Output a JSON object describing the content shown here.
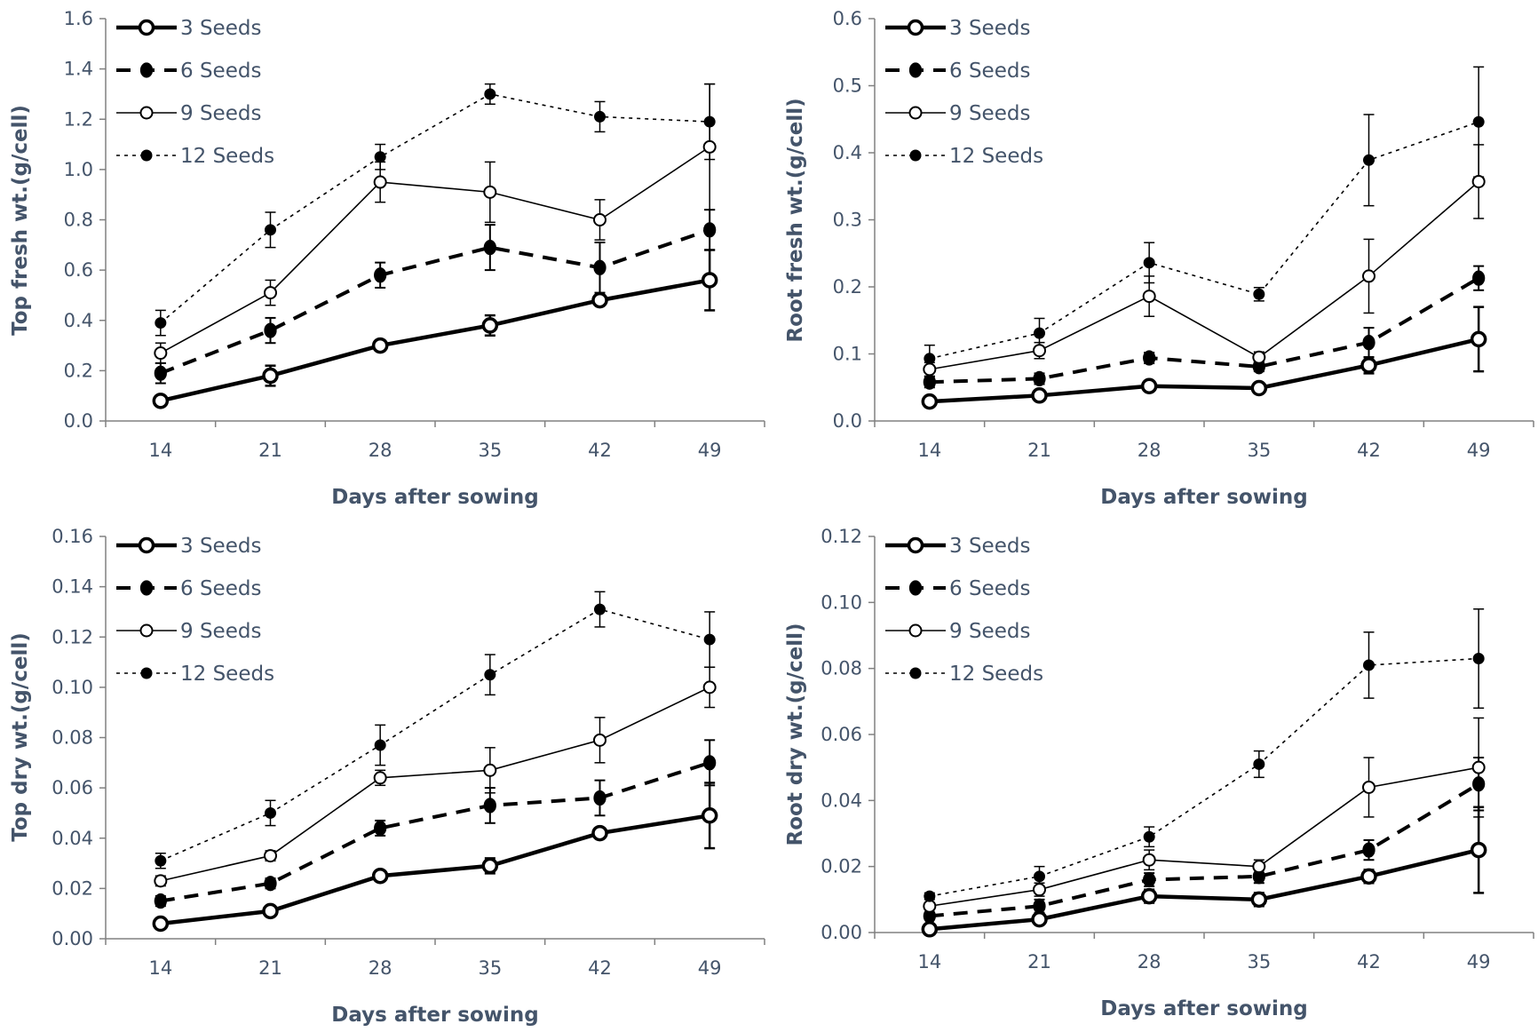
{
  "chart_data": [
    {
      "type": "line",
      "id": "top-fresh",
      "ylabel": "Top fresh wt.(g/cell)",
      "xlabel": "Days after sowing",
      "categories": [
        "14",
        "21",
        "28",
        "35",
        "42",
        "49"
      ],
      "ylim": [
        0,
        1.6
      ],
      "yticks": [
        "0.0",
        "0.2",
        "0.4",
        "0.6",
        "0.8",
        "1.0",
        "1.2",
        "1.4",
        "1.6"
      ],
      "legend_position": "top-left",
      "series": [
        {
          "name": "3 Seeds",
          "values": [
            0.08,
            0.18,
            0.3,
            0.38,
            0.48,
            0.56
          ],
          "errors": [
            0.02,
            0.04,
            0.02,
            0.04,
            0.02,
            0.12
          ]
        },
        {
          "name": "6 Seeds",
          "values": [
            0.19,
            0.36,
            0.58,
            0.69,
            0.61,
            0.76
          ],
          "errors": [
            0.04,
            0.05,
            0.05,
            0.09,
            0.1,
            0.08
          ]
        },
        {
          "name": "9 Seeds",
          "values": [
            0.27,
            0.51,
            0.95,
            0.91,
            0.8,
            1.09
          ],
          "errors": [
            0.04,
            0.05,
            0.08,
            0.12,
            0.08,
            0.25
          ]
        },
        {
          "name": "12 Seeds",
          "values": [
            0.39,
            0.76,
            1.05,
            1.3,
            1.21,
            1.19
          ],
          "errors": [
            0.05,
            0.07,
            0.05,
            0.04,
            0.06,
            0.15
          ]
        }
      ]
    },
    {
      "type": "line",
      "id": "root-fresh",
      "ylabel": "Root fresh wt.(g/cell)",
      "xlabel": "Days after sowing",
      "categories": [
        "14",
        "21",
        "28",
        "35",
        "42",
        "49"
      ],
      "ylim": [
        0,
        0.6
      ],
      "yticks": [
        "0.0",
        "0.1",
        "0.2",
        "0.3",
        "0.4",
        "0.5",
        "0.6"
      ],
      "legend_position": "top-left",
      "series": [
        {
          "name": "3 Seeds",
          "values": [
            0.029,
            0.038,
            0.052,
            0.049,
            0.083,
            0.122
          ],
          "errors": [
            0.005,
            0.005,
            0.006,
            0.004,
            0.012,
            0.048
          ]
        },
        {
          "name": "6 Seeds",
          "values": [
            0.058,
            0.063,
            0.094,
            0.081,
            0.117,
            0.213
          ],
          "errors": [
            0.008,
            0.008,
            0.008,
            0.007,
            0.022,
            0.018
          ]
        },
        {
          "name": "9 Seeds",
          "values": [
            0.077,
            0.105,
            0.186,
            0.095,
            0.216,
            0.357
          ],
          "errors": [
            0.01,
            0.012,
            0.03,
            0.008,
            0.055,
            0.055
          ]
        },
        {
          "name": "12 Seeds",
          "values": [
            0.093,
            0.131,
            0.236,
            0.189,
            0.389,
            0.446
          ],
          "errors": [
            0.02,
            0.022,
            0.03,
            0.01,
            0.068,
            0.082
          ]
        }
      ]
    },
    {
      "type": "line",
      "id": "top-dry",
      "ylabel": "Top dry wt.(g/cell)",
      "xlabel": "Days after sowing",
      "categories": [
        "14",
        "21",
        "28",
        "35",
        "42",
        "49"
      ],
      "ylim": [
        0,
        0.16
      ],
      "yticks": [
        "0.00",
        "0.02",
        "0.04",
        "0.06",
        "0.08",
        "0.10",
        "0.12",
        "0.14",
        "0.16"
      ],
      "legend_position": "top-left",
      "series": [
        {
          "name": "3 Seeds",
          "values": [
            0.006,
            0.011,
            0.025,
            0.029,
            0.042,
            0.049
          ],
          "errors": [
            0.001,
            0.002,
            0.002,
            0.003,
            0.002,
            0.013
          ]
        },
        {
          "name": "6 Seeds",
          "values": [
            0.015,
            0.022,
            0.044,
            0.053,
            0.056,
            0.07
          ],
          "errors": [
            0.002,
            0.002,
            0.003,
            0.007,
            0.007,
            0.009
          ]
        },
        {
          "name": "9 Seeds",
          "values": [
            0.023,
            0.033,
            0.064,
            0.067,
            0.079,
            0.1
          ],
          "errors": [
            0.002,
            0.002,
            0.003,
            0.009,
            0.009,
            0.008
          ]
        },
        {
          "name": "12 Seeds",
          "values": [
            0.031,
            0.05,
            0.077,
            0.105,
            0.131,
            0.119
          ],
          "errors": [
            0.003,
            0.005,
            0.008,
            0.008,
            0.007,
            0.011
          ]
        }
      ]
    },
    {
      "type": "line",
      "id": "root-dry",
      "ylabel": "Root dry wt.(g/cell)",
      "xlabel": "Days after sowing",
      "categories": [
        "14",
        "21",
        "28",
        "35",
        "42",
        "49"
      ],
      "ylim": [
        0,
        0.12
      ],
      "yticks": [
        "0.00",
        "0.02",
        "0.04",
        "0.06",
        "0.08",
        "0.10",
        "0.12"
      ],
      "legend_position": "top-left",
      "series": [
        {
          "name": "3 Seeds",
          "values": [
            0.001,
            0.004,
            0.011,
            0.01,
            0.017,
            0.025
          ],
          "errors": [
            0.001,
            0.001,
            0.002,
            0.002,
            0.002,
            0.013
          ]
        },
        {
          "name": "6 Seeds",
          "values": [
            0.005,
            0.008,
            0.016,
            0.017,
            0.025,
            0.045
          ],
          "errors": [
            0.001,
            0.002,
            0.002,
            0.002,
            0.003,
            0.008
          ]
        },
        {
          "name": "9 Seeds",
          "values": [
            0.008,
            0.013,
            0.022,
            0.02,
            0.044,
            0.05
          ],
          "errors": [
            0.001,
            0.002,
            0.003,
            0.002,
            0.009,
            0.015
          ]
        },
        {
          "name": "12 Seeds",
          "values": [
            0.011,
            0.017,
            0.029,
            0.051,
            0.081,
            0.083
          ],
          "errors": [
            0.001,
            0.003,
            0.003,
            0.004,
            0.01,
            0.015
          ]
        }
      ]
    }
  ]
}
